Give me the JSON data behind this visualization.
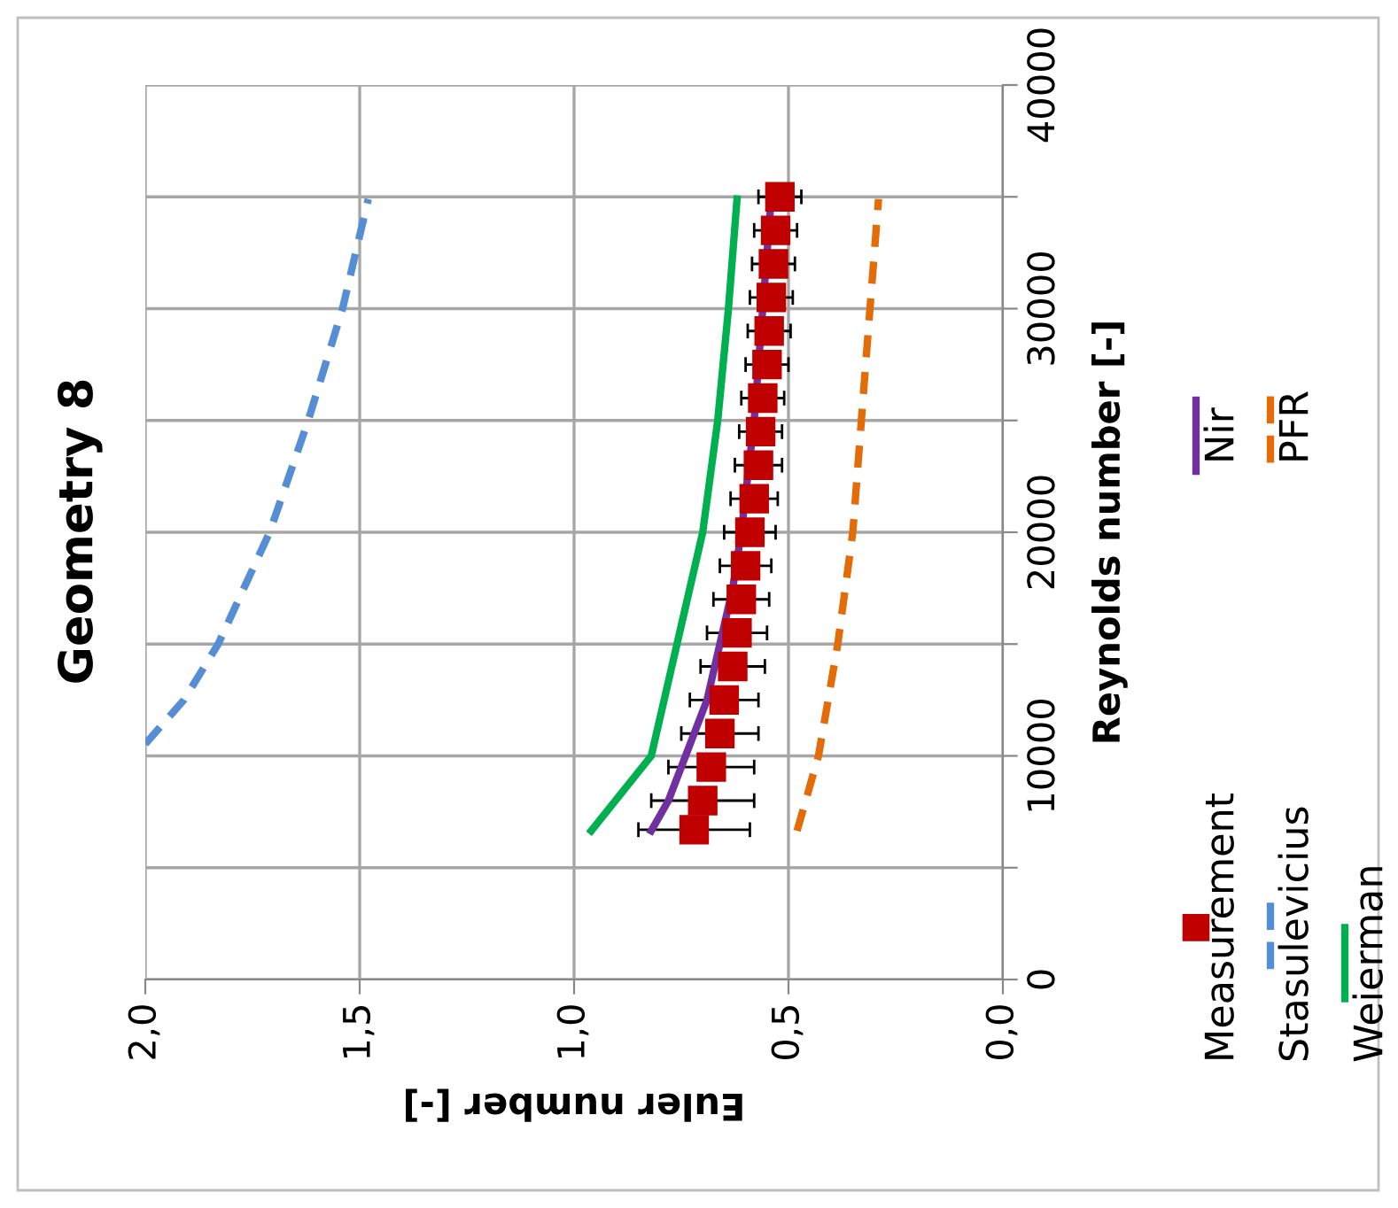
{
  "chart_data": {
    "type": "line",
    "title": "Geometry 8",
    "xlabel": "Euler number [-]",
    "ylabel": "Reynolds number [-]",
    "xlim": [
      2.0,
      0.0
    ],
    "xticks": [
      {
        "value": 2.0,
        "label": "2,0"
      },
      {
        "value": 1.5,
        "label": "1,5"
      },
      {
        "value": 1.0,
        "label": "1,0"
      },
      {
        "value": 0.5,
        "label": "0,5"
      },
      {
        "value": 0.0,
        "label": "0,0"
      }
    ],
    "ylim": [
      0,
      40000
    ],
    "yticks": [
      0,
      {
        "value": 5000,
        "label": null
      },
      10000,
      {
        "value": 15000,
        "label": null
      },
      20000,
      {
        "value": 25000,
        "label": null
      },
      30000,
      {
        "value": 35000,
        "label": null
      },
      40000
    ],
    "grid": true,
    "legend": "bottom right",
    "series": [
      {
        "name": "Measurement",
        "type": "scatter",
        "marker": "square",
        "color": "#c00000",
        "values": [
          6700,
          8000,
          9500,
          11000,
          12500,
          14000,
          15500,
          17000,
          18500,
          20000,
          21500,
          23000,
          24500,
          26000,
          27500,
          29000,
          30500,
          32000,
          33500,
          35000
        ],
        "x": [
          0.72,
          0.7,
          0.68,
          0.66,
          0.65,
          0.63,
          0.62,
          0.61,
          0.6,
          0.59,
          0.58,
          0.57,
          0.565,
          0.56,
          0.55,
          0.545,
          0.54,
          0.535,
          0.53,
          0.52
        ],
        "xerrors": [
          0.13,
          0.12,
          0.1,
          0.09,
          0.08,
          0.075,
          0.07,
          0.065,
          0.06,
          0.06,
          0.055,
          0.055,
          0.05,
          0.05,
          0.05,
          0.05,
          0.05,
          0.05,
          0.05,
          0.05
        ]
      },
      {
        "name": "Nir",
        "type": "line",
        "line_style": "solid",
        "color": "#7030a0",
        "values": [
          6650,
          8000,
          10000,
          12500,
          15000,
          17500,
          20000,
          25000,
          30000,
          35000
        ],
        "x": [
          0.82,
          0.78,
          0.74,
          0.69,
          0.66,
          0.63,
          0.61,
          0.58,
          0.56,
          0.54
        ]
      },
      {
        "name": "Stasulevicius",
        "type": "line",
        "line_style": "dashed",
        "color": "#558ed5",
        "values": [
          10530,
          12500,
          15000,
          20000,
          25000,
          30000,
          34900
        ],
        "x": [
          2.0,
          1.91,
          1.83,
          1.71,
          1.62,
          1.54,
          1.48
        ]
      },
      {
        "name": "PFR",
        "type": "line",
        "line_style": "dashed",
        "color": "#e36c09",
        "values": [
          6650,
          10000,
          15000,
          20000,
          25000,
          30000,
          34900
        ],
        "x": [
          0.48,
          0.43,
          0.385,
          0.35,
          0.33,
          0.31,
          0.29
        ]
      },
      {
        "name": "Weierman",
        "type": "line",
        "line_style": "solid",
        "color": "#00b050",
        "values": [
          6650,
          10000,
          15000,
          20000,
          25000,
          30000,
          34900
        ],
        "x": [
          0.96,
          0.82,
          0.76,
          0.7,
          0.665,
          0.64,
          0.62
        ]
      }
    ]
  }
}
